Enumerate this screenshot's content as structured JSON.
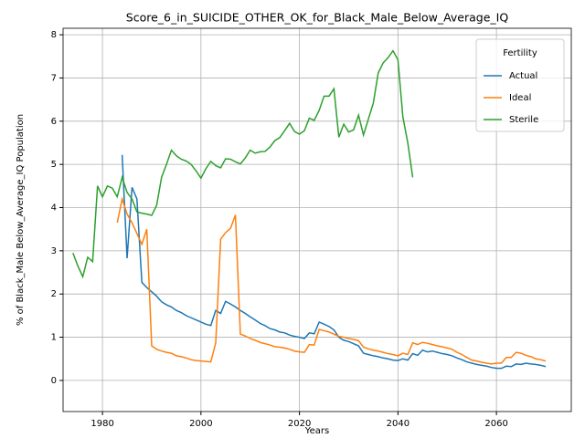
{
  "chart_data": {
    "type": "line",
    "title": "Score_6_in_SUICIDE_OTHER_OK_for_Black_Male_Below_Average_IQ",
    "xlabel": "Years",
    "ylabel": "% of Black_Male Below_Average_IQ Population",
    "legend_title": "Fertility",
    "legend": "upper right",
    "grid": true,
    "xlim": [
      1972,
      2075.2
    ],
    "ylim": [
      -0.72,
      8.15
    ],
    "xticks": [
      1980,
      2000,
      2020,
      2040,
      2060
    ],
    "yticks": [
      0,
      1,
      2,
      3,
      4,
      5,
      6,
      7,
      8
    ],
    "x": [
      1974,
      1975,
      1976,
      1977,
      1978,
      1979,
      1980,
      1981,
      1982,
      1983,
      1984,
      1985,
      1986,
      1987,
      1988,
      1989,
      1990,
      1991,
      1992,
      1993,
      1994,
      1995,
      1996,
      1997,
      1998,
      1999,
      2000,
      2001,
      2002,
      2003,
      2004,
      2005,
      2006,
      2007,
      2008,
      2009,
      2010,
      2011,
      2012,
      2013,
      2014,
      2015,
      2016,
      2017,
      2018,
      2019,
      2020,
      2021,
      2022,
      2023,
      2024,
      2025,
      2026,
      2027,
      2028,
      2029,
      2030,
      2031,
      2032,
      2033,
      2034,
      2035,
      2036,
      2037,
      2038,
      2039,
      2040,
      2041,
      2042,
      2043,
      2044,
      2045,
      2046,
      2047,
      2048,
      2049,
      2050,
      2051,
      2052,
      2053,
      2054,
      2055,
      2056,
      2057,
      2058,
      2059,
      2060,
      2061,
      2062,
      2063,
      2064,
      2065,
      2066,
      2067,
      2068,
      2069,
      2070
    ],
    "series": [
      {
        "name": "Actual",
        "color": "#1f77b4",
        "values": [
          null,
          null,
          null,
          null,
          null,
          null,
          null,
          null,
          null,
          null,
          5.22,
          2.83,
          4.47,
          4.2,
          2.27,
          2.15,
          2.05,
          1.95,
          1.82,
          1.75,
          1.7,
          1.62,
          1.57,
          1.5,
          1.45,
          1.4,
          1.35,
          1.3,
          1.27,
          1.62,
          1.55,
          1.83,
          1.77,
          1.7,
          1.62,
          1.55,
          1.47,
          1.4,
          1.32,
          1.27,
          1.2,
          1.17,
          1.12,
          1.1,
          1.05,
          1.02,
          1.0,
          0.97,
          1.1,
          1.08,
          1.35,
          1.3,
          1.25,
          1.17,
          1.0,
          0.93,
          0.9,
          0.85,
          0.8,
          0.63,
          0.6,
          0.57,
          0.55,
          0.52,
          0.5,
          0.47,
          0.46,
          0.5,
          0.47,
          0.62,
          0.58,
          0.7,
          0.66,
          0.68,
          0.65,
          0.62,
          0.6,
          0.57,
          0.52,
          0.48,
          0.43,
          0.4,
          0.37,
          0.35,
          0.33,
          0.3,
          0.28,
          0.28,
          0.33,
          0.32,
          0.38,
          0.37,
          0.4,
          0.38,
          0.37,
          0.35,
          0.32
        ]
      },
      {
        "name": "Ideal",
        "color": "#ff7f0e",
        "values": [
          null,
          null,
          null,
          null,
          null,
          null,
          null,
          null,
          null,
          3.65,
          4.2,
          3.85,
          3.65,
          3.4,
          3.15,
          3.5,
          0.8,
          0.72,
          0.68,
          0.65,
          0.63,
          0.57,
          0.55,
          0.52,
          0.48,
          0.46,
          0.45,
          0.44,
          0.43,
          0.87,
          3.27,
          3.42,
          3.52,
          3.83,
          1.07,
          1.03,
          0.97,
          0.93,
          0.88,
          0.85,
          0.82,
          0.78,
          0.77,
          0.75,
          0.72,
          0.68,
          0.66,
          0.65,
          0.83,
          0.82,
          1.18,
          1.15,
          1.12,
          1.07,
          1.02,
          1.0,
          0.97,
          0.95,
          0.92,
          0.77,
          0.73,
          0.7,
          0.68,
          0.65,
          0.62,
          0.6,
          0.57,
          0.63,
          0.6,
          0.87,
          0.83,
          0.88,
          0.86,
          0.83,
          0.8,
          0.78,
          0.75,
          0.72,
          0.65,
          0.6,
          0.53,
          0.47,
          0.45,
          0.42,
          0.4,
          0.38,
          0.4,
          0.4,
          0.53,
          0.53,
          0.65,
          0.63,
          0.58,
          0.55,
          0.5,
          0.48,
          0.45
        ]
      },
      {
        "name": "Sterile",
        "color": "#2ca02c",
        "values": [
          2.95,
          2.65,
          2.4,
          2.85,
          2.75,
          4.5,
          4.25,
          4.5,
          4.45,
          4.25,
          4.7,
          4.35,
          4.2,
          3.9,
          3.87,
          3.85,
          3.82,
          4.05,
          4.7,
          5.0,
          5.33,
          5.2,
          5.12,
          5.08,
          5.0,
          4.85,
          4.68,
          4.9,
          5.07,
          4.97,
          4.92,
          5.13,
          5.12,
          5.06,
          5.01,
          5.15,
          5.33,
          5.26,
          5.29,
          5.3,
          5.4,
          5.55,
          5.62,
          5.78,
          5.95,
          5.76,
          5.7,
          5.78,
          6.07,
          6.02,
          6.25,
          6.58,
          6.58,
          6.75,
          5.63,
          5.93,
          5.75,
          5.8,
          6.14,
          5.68,
          6.05,
          6.42,
          7.12,
          7.35,
          7.47,
          7.63,
          7.42,
          6.1,
          5.5,
          4.7,
          null,
          null,
          null,
          null,
          null,
          null,
          null,
          null,
          null,
          null,
          null,
          null,
          null,
          null,
          null,
          null,
          null,
          null,
          null,
          null,
          null,
          null,
          null,
          null,
          null,
          null,
          null
        ]
      }
    ]
  }
}
